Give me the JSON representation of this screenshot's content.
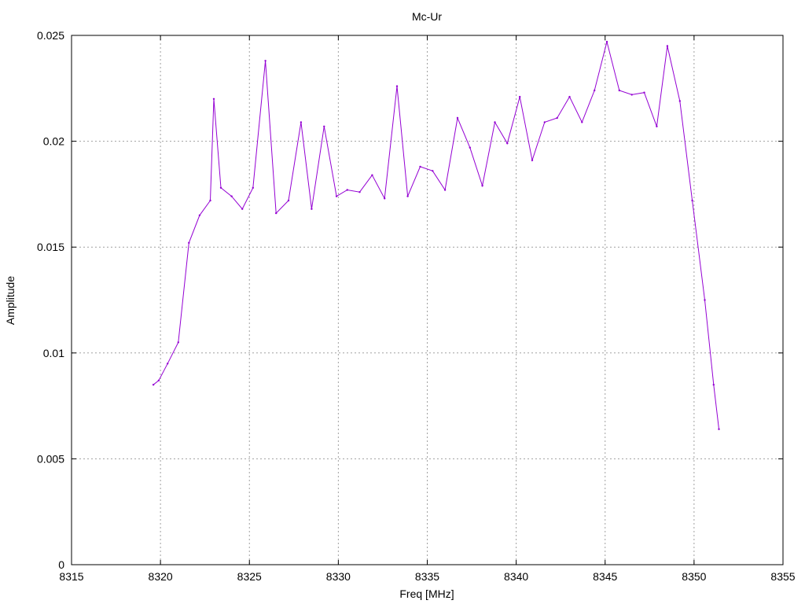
{
  "chart_data": {
    "type": "line",
    "title": "Mc-Ur",
    "xlabel": "Freq [MHz]",
    "ylabel": "Amplitude",
    "xlim": [
      8315,
      8355
    ],
    "ylim": [
      0,
      0.025
    ],
    "grid": true,
    "x_ticks": [
      {
        "value": 8315,
        "label": "8315"
      },
      {
        "value": 8320,
        "label": "8320"
      },
      {
        "value": 8325,
        "label": "8325"
      },
      {
        "value": 8330,
        "label": "8330"
      },
      {
        "value": 8335,
        "label": "8335"
      },
      {
        "value": 8340,
        "label": "8340"
      },
      {
        "value": 8345,
        "label": "8345"
      },
      {
        "value": 8350,
        "label": "8350"
      },
      {
        "value": 8355,
        "label": "8355"
      }
    ],
    "y_ticks": [
      {
        "value": 0,
        "label": "0"
      },
      {
        "value": 0.005,
        "label": "0.005"
      },
      {
        "value": 0.01,
        "label": "0.01"
      },
      {
        "value": 0.015,
        "label": "0.015"
      },
      {
        "value": 0.02,
        "label": "0.02"
      },
      {
        "value": 0.025,
        "label": "0.025"
      }
    ],
    "series": [
      {
        "color": "#9400d3",
        "x": [
          8319.6,
          8319.9,
          8320.4,
          8321.0,
          8321.6,
          8322.2,
          8322.8,
          8323.0,
          8323.4,
          8324.0,
          8324.6,
          8325.2,
          8325.9,
          8326.5,
          8327.2,
          8327.9,
          8328.5,
          8329.2,
          8329.9,
          8330.5,
          8331.2,
          8331.9,
          8332.6,
          8333.3,
          8333.9,
          8334.6,
          8335.3,
          8336.0,
          8336.7,
          8337.4,
          8338.1,
          8338.8,
          8339.5,
          8340.2,
          8340.9,
          8341.6,
          8342.3,
          8343.0,
          8343.7,
          8344.4,
          8345.1,
          8345.8,
          8346.5,
          8347.2,
          8347.9,
          8348.5,
          8349.2,
          8349.9,
          8350.6,
          8351.1,
          8351.4
        ],
        "y": [
          0.0085,
          0.0087,
          0.0095,
          0.0105,
          0.0152,
          0.0165,
          0.0172,
          0.022,
          0.0178,
          0.0174,
          0.0168,
          0.0178,
          0.0238,
          0.0166,
          0.0172,
          0.0209,
          0.0168,
          0.0207,
          0.0174,
          0.0177,
          0.0176,
          0.0184,
          0.0173,
          0.0226,
          0.0174,
          0.0188,
          0.0186,
          0.0177,
          0.0211,
          0.0197,
          0.0179,
          0.0209,
          0.0199,
          0.0221,
          0.0191,
          0.0209,
          0.0211,
          0.0221,
          0.0209,
          0.0224,
          0.0247,
          0.0224,
          0.0222,
          0.0223,
          0.0207,
          0.0245,
          0.0219,
          0.0172,
          0.0125,
          0.0085,
          0.0064
        ]
      }
    ]
  }
}
